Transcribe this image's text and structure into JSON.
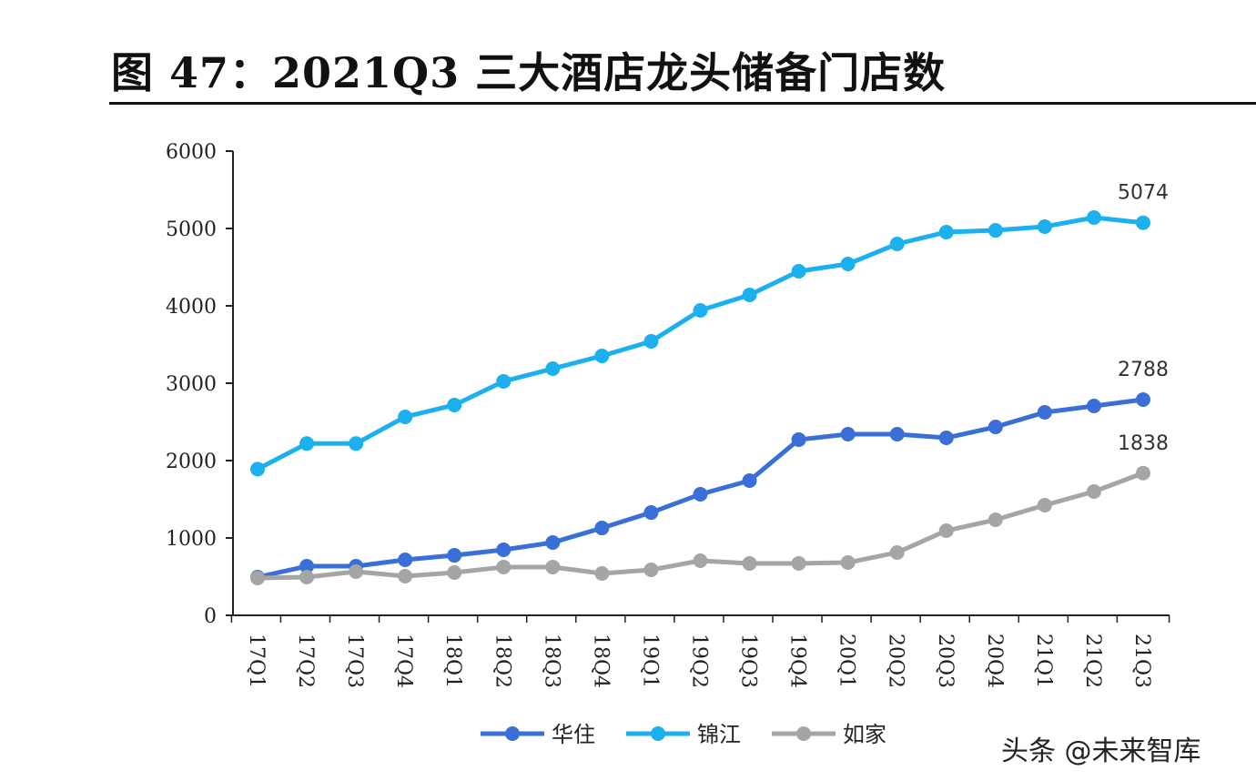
{
  "title": "图 47：2021Q3 三大酒店龙头储备门店数",
  "watermark": "头条 @未来智库",
  "chart_data": {
    "type": "line",
    "title": "",
    "xlabel": "",
    "ylabel": "",
    "ylim": [
      0,
      6000
    ],
    "yticks": [
      0,
      1000,
      2000,
      3000,
      4000,
      5000,
      6000
    ],
    "grid": false,
    "legend": "bottom",
    "categories": [
      "17Q1",
      "17Q2",
      "17Q3",
      "17Q4",
      "18Q1",
      "18Q2",
      "18Q3",
      "18Q4",
      "19Q1",
      "19Q2",
      "19Q3",
      "19Q4",
      "20Q1",
      "20Q2",
      "20Q3",
      "20Q4",
      "21Q1",
      "21Q2",
      "21Q3"
    ],
    "series": [
      {
        "name": "华住",
        "color": "#3a6fd8",
        "values": [
          494,
          635,
          635,
          718,
          776,
          847,
          941,
          1129,
          1329,
          1565,
          1741,
          2271,
          2341,
          2341,
          2294,
          2435,
          2624,
          2706,
          2788
        ],
        "end_label": "2788"
      },
      {
        "name": "锦江",
        "color": "#1cb0ee",
        "values": [
          1890,
          2220,
          2220,
          2565,
          2718,
          3024,
          3188,
          3353,
          3541,
          3941,
          4141,
          4447,
          4541,
          4800,
          4953,
          4976,
          5024,
          5141,
          5074
        ],
        "end_label": "5074"
      },
      {
        "name": "如家",
        "color": "#a5a5a5",
        "values": [
          482,
          494,
          565,
          506,
          553,
          624,
          624,
          541,
          588,
          706,
          671,
          671,
          682,
          812,
          1094,
          1235,
          1424,
          1600,
          1838
        ],
        "end_label": "1838"
      }
    ]
  }
}
